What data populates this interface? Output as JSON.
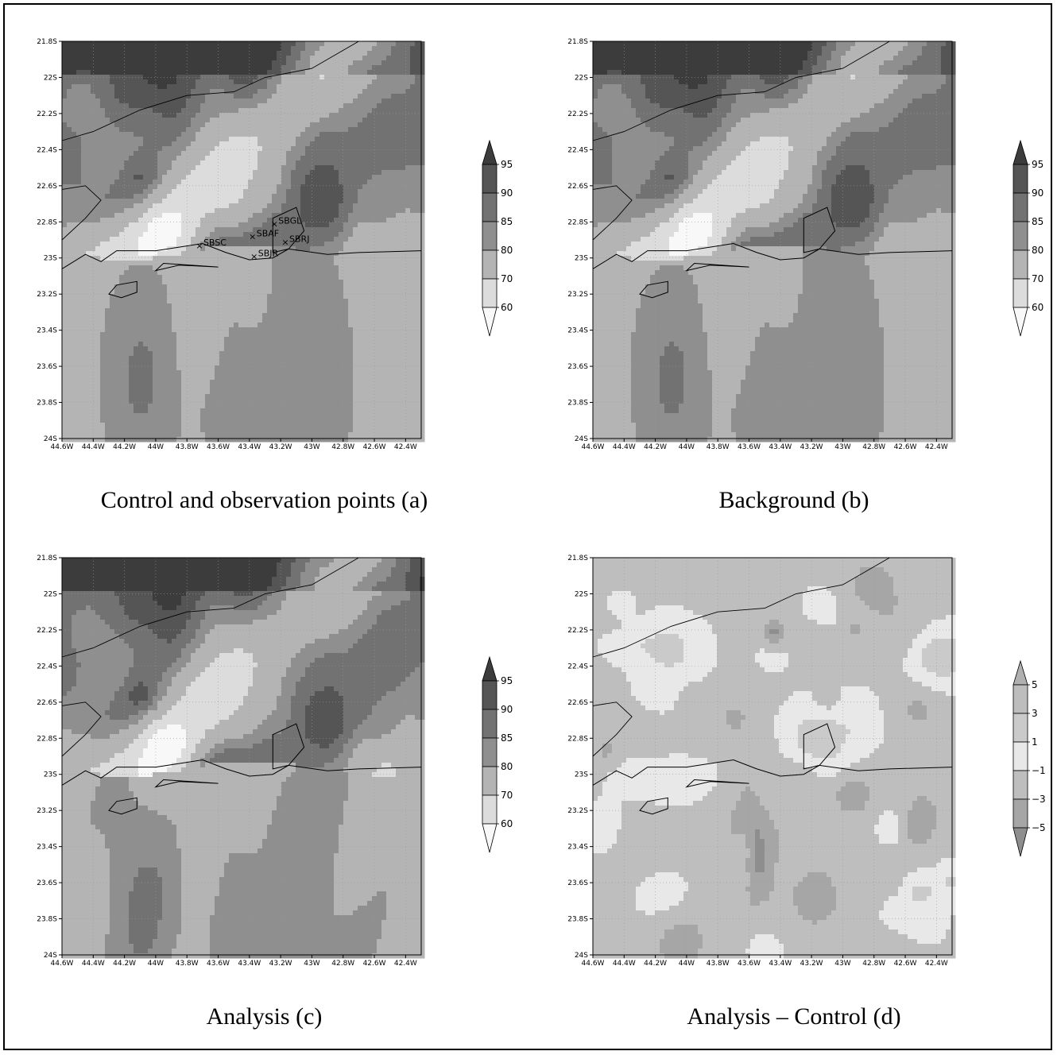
{
  "panels": [
    {
      "id": "a",
      "caption": "Control and observation points (a)",
      "variant": "field",
      "stations": [
        {
          "name": "SBSC",
          "lon": -43.72,
          "lat": -22.93
        },
        {
          "name": "SBAF",
          "lon": -43.38,
          "lat": -22.88
        },
        {
          "name": "SBGL",
          "lon": -43.24,
          "lat": -22.81
        },
        {
          "name": "SBJR",
          "lon": -43.37,
          "lat": -22.99
        },
        {
          "name": "SBRJ",
          "lon": -43.17,
          "lat": -22.91
        }
      ]
    },
    {
      "id": "b",
      "caption": "Background (b)",
      "variant": "field",
      "stations": []
    },
    {
      "id": "c",
      "caption": "Analysis (c)",
      "variant": "field",
      "stations": []
    },
    {
      "id": "d",
      "caption": "Analysis – Control (d)",
      "variant": "diff",
      "stations": []
    }
  ],
  "axes": {
    "lat_ticks": [
      "21.8S",
      "22S",
      "22.2S",
      "22.4S",
      "22.6S",
      "22.8S",
      "23S",
      "23.2S",
      "23.4S",
      "23.6S",
      "23.8S",
      "24S"
    ],
    "lon_ticks": [
      "44.6W",
      "44.4W",
      "44.2W",
      "44W",
      "43.8W",
      "43.6W",
      "43.4W",
      "43.2W",
      "43W",
      "42.8W",
      "42.6W",
      "42.4W"
    ],
    "lon_range": [
      -44.6,
      -42.3
    ],
    "lat_range": [
      -24.0,
      -21.8
    ]
  },
  "colorbars": {
    "field": {
      "levels": [
        "95",
        "90",
        "85",
        "80",
        "70",
        "60"
      ],
      "colors": [
        "#3c3c3c",
        "#555555",
        "#727272",
        "#8f8f8f",
        "#b4b4b4",
        "#dcdcdc",
        "#f8f8f8"
      ]
    },
    "diff": {
      "levels": [
        "5",
        "3",
        "1",
        "−1",
        "−3",
        "−5"
      ],
      "colors": [
        "#b0b0b0",
        "#bdbdbd",
        "#cacaca",
        "#e8e8e8",
        "#bebebe",
        "#a6a6a6",
        "#8e8e8e"
      ]
    }
  }
}
